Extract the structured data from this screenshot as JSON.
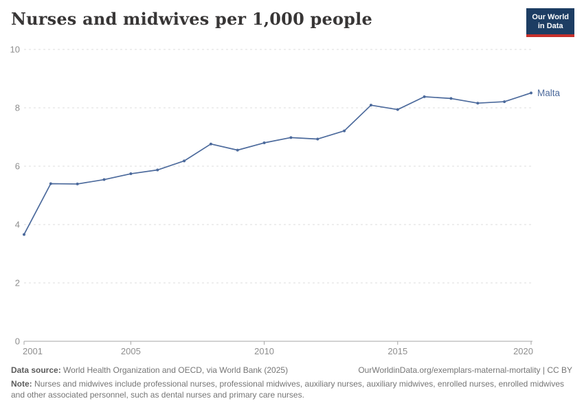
{
  "header": {
    "title": "Nurses and midwives per 1,000 people",
    "logo": {
      "line1": "Our World",
      "line2": "in Data"
    }
  },
  "chart_data": {
    "type": "line",
    "title": "Nurses and midwives per 1,000 people",
    "xlabel": "",
    "ylabel": "",
    "ylim": [
      0,
      10
    ],
    "yticks": [
      0,
      2,
      4,
      6,
      8,
      10
    ],
    "xticks": [
      2001,
      2005,
      2010,
      2015,
      2020
    ],
    "grid": "horizontal-dashed",
    "legend_position": "end-of-line-label",
    "line_color": "#4C6A9C",
    "series": [
      {
        "name": "Malta",
        "x": [
          2001,
          2002,
          2003,
          2004,
          2005,
          2006,
          2007,
          2008,
          2009,
          2010,
          2011,
          2012,
          2013,
          2014,
          2015,
          2016,
          2017,
          2018,
          2019,
          2020
        ],
        "values": [
          3.66,
          5.4,
          5.39,
          5.54,
          5.74,
          5.87,
          6.18,
          6.76,
          6.55,
          6.8,
          6.98,
          6.93,
          7.21,
          8.09,
          7.94,
          8.38,
          8.32,
          8.16,
          8.21,
          8.51
        ]
      }
    ]
  },
  "colors": {
    "accent_line": "#4C6A9C",
    "grid": "#dedede",
    "axis": "#a5a5a5",
    "tick_text": "#8e8e8e",
    "logo_navy": "#1d3d63",
    "logo_red": "#c7302b",
    "title_text": "#383636",
    "footer_text": "#757575"
  },
  "footer": {
    "source_label": "Data source:",
    "source_text": " World Health Organization and OECD, via World Bank (2025)",
    "link_text": "OurWorldinData.org/exemplars-maternal-mortality | CC BY",
    "note_label": "Note:",
    "note_text": " Nurses and midwives include professional nurses, professional midwives, auxiliary nurses, auxiliary midwives, enrolled nurses, enrolled midwives and other associated personnel, such as dental nurses and primary care nurses."
  }
}
